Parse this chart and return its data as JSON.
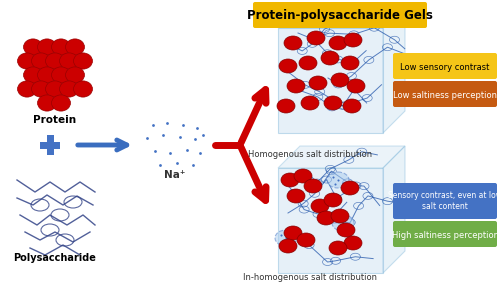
{
  "title": "Protein-polysaccharide Gels",
  "title_bg": "#F0B800",
  "title_color": "#000000",
  "title_fontsize": 8.5,
  "label_protein": "Protein",
  "label_polysaccharide": "Polysaccharide",
  "label_na": "Na⁺",
  "label_homogenous": "Homogenous salt distribution",
  "label_inhomogenous": "In-homogenous salt distribution",
  "box1_label1": "Low sensory contrast",
  "box1_label2": "Low saltiness perception",
  "box2_label1": "Sensory contrast, even at low\nsalt content",
  "box2_label2": "High saltiness perception",
  "box1_label1_bg": "#F5C518",
  "box1_label2_bg": "#C55A11",
  "box2_label1_bg": "#4472C4",
  "box2_label2_bg": "#70AD47",
  "protein_color": "#CC0000",
  "na_color": "#4472C4",
  "arrow_color": "#CC0000",
  "plus_color": "#4472C4",
  "big_arrow_color": "#3A6DBF",
  "gel_color_face": "#C8DFF0",
  "gel_edge_color": "#7EB6D9",
  "background_color": "#FFFFFF"
}
